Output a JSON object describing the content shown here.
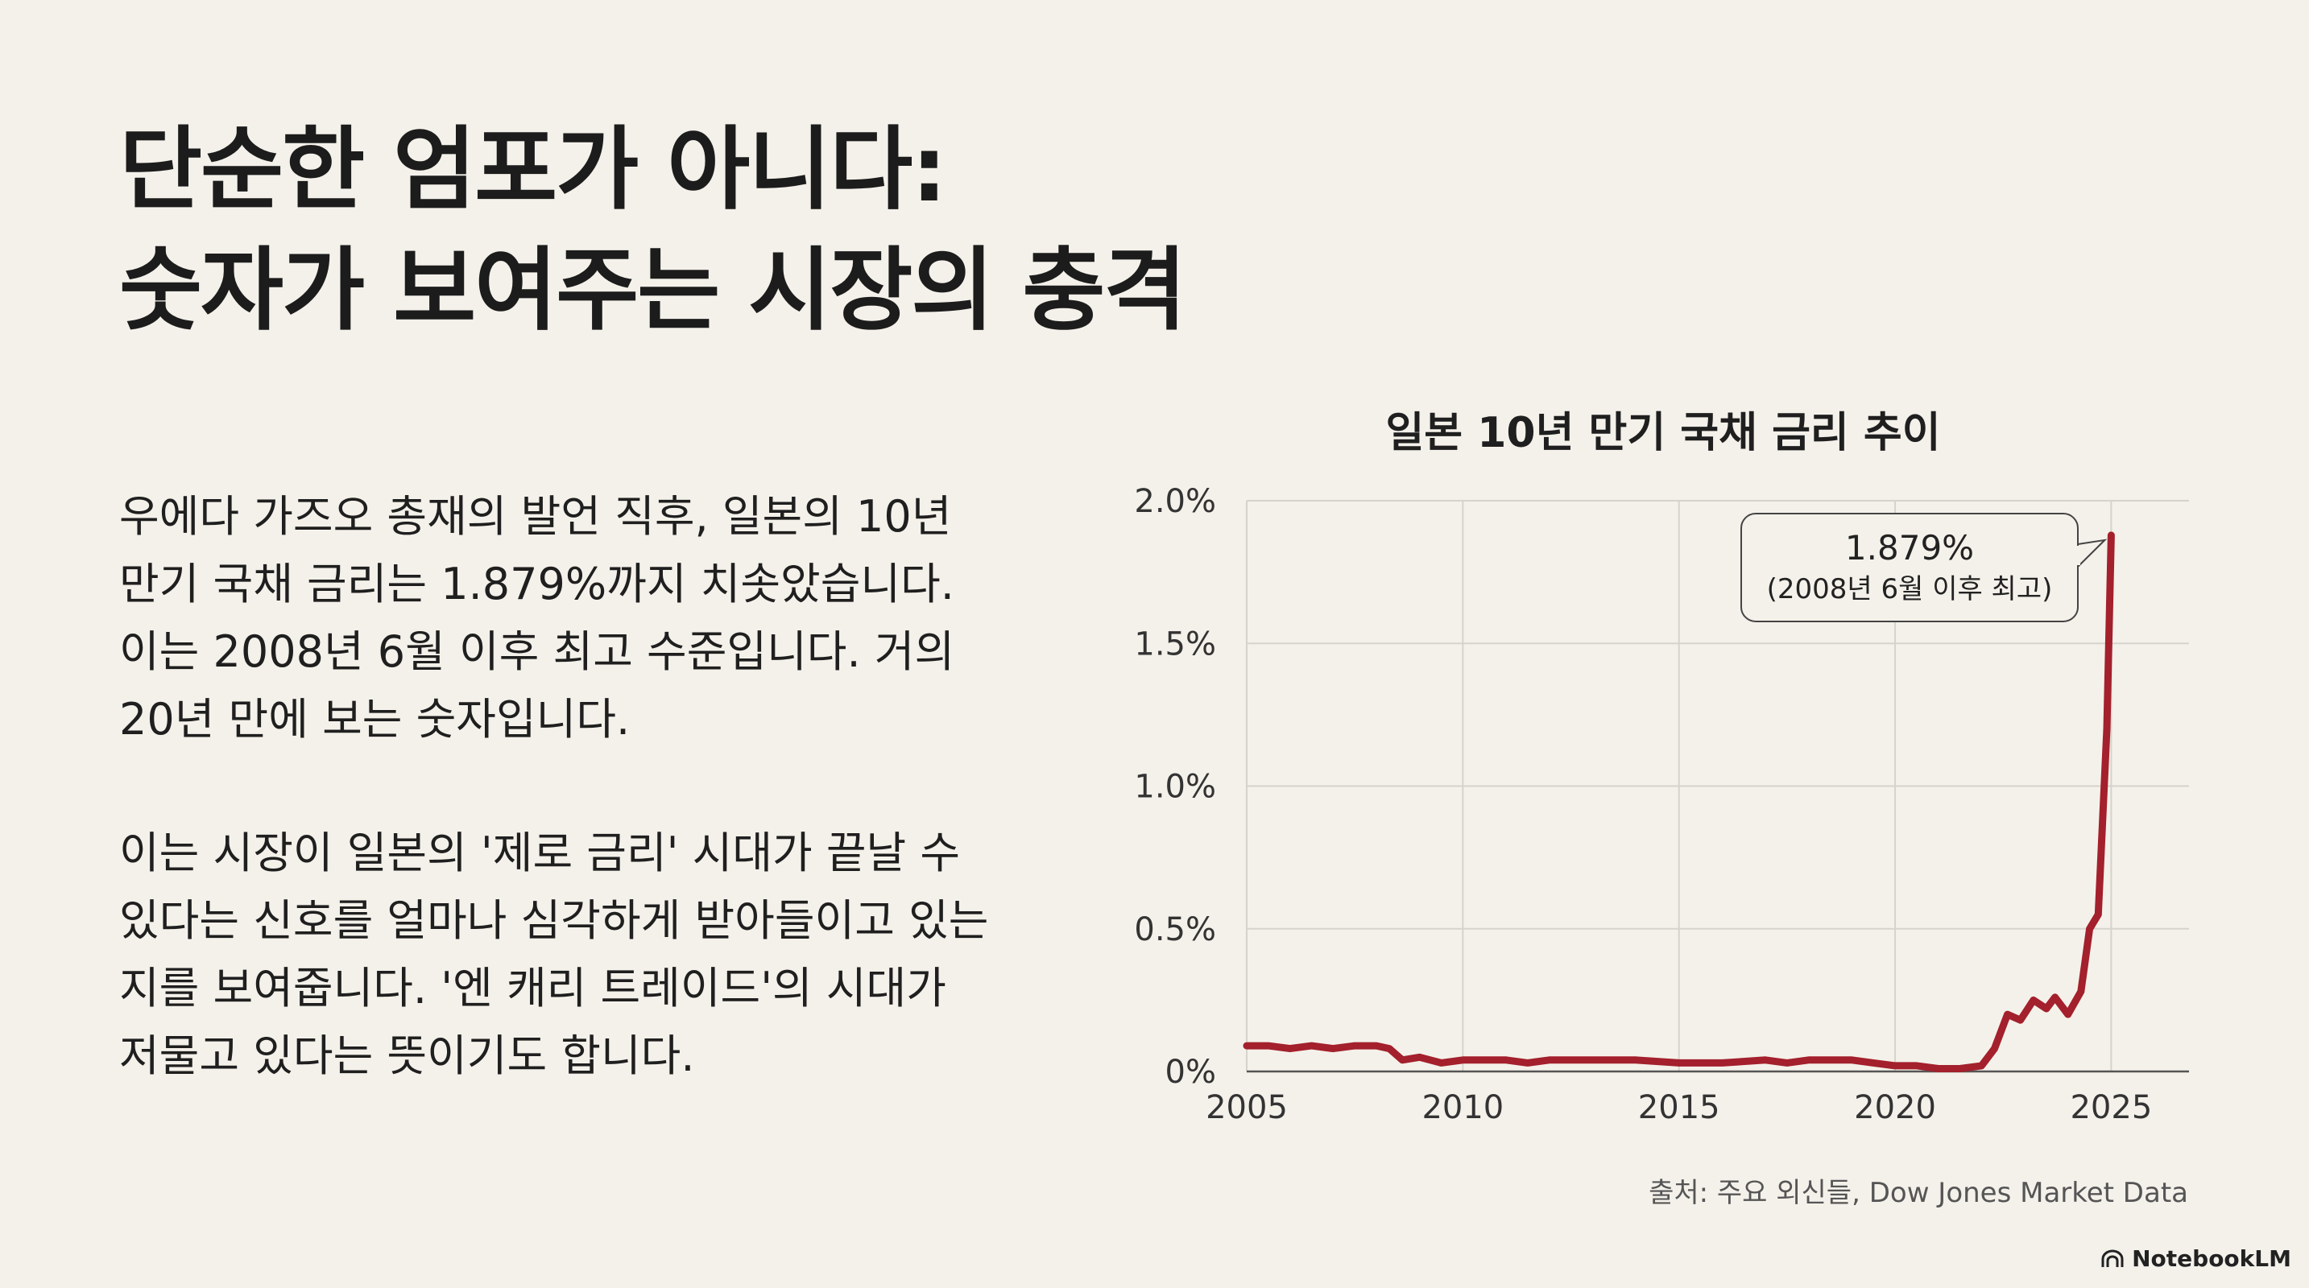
{
  "title": {
    "line1": "단순한 엄포가 아니다:",
    "line2": "숫자가 보여주는 시장의 충격"
  },
  "body": {
    "paragraph1": "우에다 가즈오 총재의 발언 직후, 일본의 10년 만기 국채 금리는 1.879%까지 치솟았습니다. 이는 2008년 6월 이후 최고 수준입니다. 거의 20년 만에 보는 숫자입니다.",
    "paragraph2": "이는 시장이 일본의 '제로 금리' 시대가 끝날 수 있다는 신호를 얼마나 심각하게 받아들이고 있는지를 보여줍니다. '엔 캐리 트레이드'의 시대가 저물고 있다는 뜻이기도 합니다."
  },
  "source": "출처: 주요 외신들, Dow Jones Market Data",
  "brand": "NotebookLM",
  "colors": {
    "background": "#f4f1ea",
    "line": "#a3202c",
    "grid": "#d6d3cc"
  },
  "chart_data": {
    "type": "line",
    "title": "일본 10년 만기 국채 금리 추이",
    "xlabel": "",
    "ylabel": "",
    "xlim": [
      2005,
      2026.8
    ],
    "ylim": [
      0,
      2.0
    ],
    "x_ticks": [
      "2005",
      "2010",
      "2015",
      "2020",
      "2025"
    ],
    "y_ticks": [
      "0%",
      "0.5%",
      "1.0%",
      "1.5%",
      "2.0%"
    ],
    "grid": true,
    "annotation": {
      "line1": "1.879%",
      "line2": "(2008년 6월 이후 최고)",
      "x": 2025.0,
      "y": 1.879
    },
    "series": [
      {
        "x": [
          2005.0,
          2005.5,
          2006.0,
          2006.5,
          2007.0,
          2007.5,
          2008.0,
          2008.3,
          2008.6,
          2009.0,
          2009.5,
          2010.0,
          2010.5,
          2011.0,
          2011.5,
          2012.0,
          2013.0,
          2014.0,
          2015.0,
          2016.0,
          2017.0,
          2017.5,
          2018.0,
          2019.0,
          2019.5,
          2020.0,
          2020.5,
          2021.0,
          2021.5,
          2022.0,
          2022.3,
          2022.6,
          2022.9,
          2023.2,
          2023.5,
          2023.7,
          2024.0,
          2024.3,
          2024.5,
          2024.7,
          2024.9,
          2025.0
        ],
        "y": [
          0.09,
          0.09,
          0.08,
          0.09,
          0.08,
          0.09,
          0.09,
          0.08,
          0.04,
          0.05,
          0.03,
          0.04,
          0.04,
          0.04,
          0.03,
          0.04,
          0.04,
          0.04,
          0.03,
          0.03,
          0.04,
          0.03,
          0.04,
          0.04,
          0.03,
          0.02,
          0.02,
          0.01,
          0.01,
          0.02,
          0.08,
          0.2,
          0.18,
          0.25,
          0.22,
          0.26,
          0.2,
          0.28,
          0.5,
          0.55,
          1.2,
          1.879
        ]
      }
    ]
  }
}
